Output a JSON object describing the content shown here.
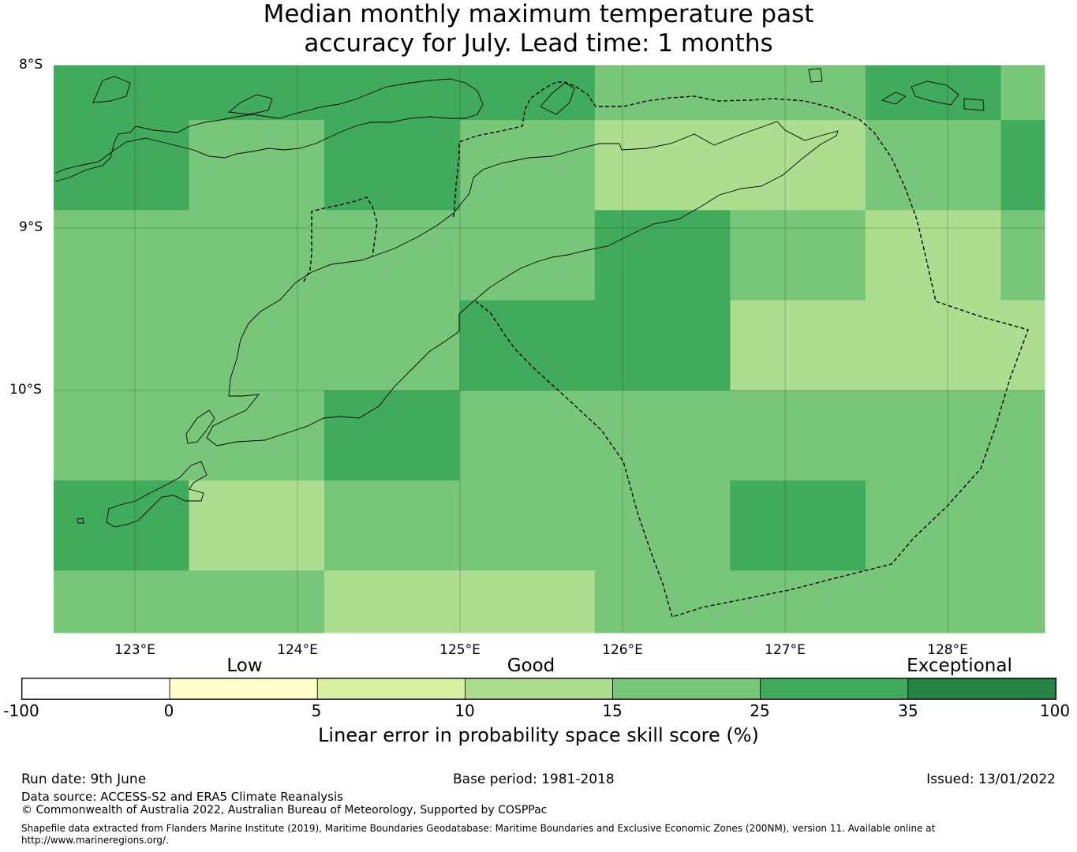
{
  "title": {
    "line1": "Median monthly maximum temperature past",
    "line2": "accuracy for July. Lead time: 1 months"
  },
  "map": {
    "lat_labels": [
      "8°S",
      "9°S",
      "10°S"
    ],
    "lon_labels": [
      "123°E",
      "124°E",
      "125°E",
      "126°E",
      "127°E",
      "128°E"
    ],
    "skill_grid": [
      [
        35,
        35,
        35,
        35,
        25,
        25,
        35,
        25
      ],
      [
        35,
        25,
        35,
        25,
        15,
        15,
        25,
        35
      ],
      [
        25,
        25,
        25,
        25,
        35,
        25,
        15,
        25
      ],
      [
        25,
        25,
        25,
        35,
        35,
        15,
        15,
        15
      ],
      [
        25,
        25,
        35,
        25,
        25,
        25,
        25,
        25
      ],
      [
        35,
        15,
        25,
        25,
        25,
        35,
        25,
        25
      ],
      [
        25,
        25,
        15,
        15,
        25,
        25,
        25,
        25
      ]
    ]
  },
  "colorbar": {
    "categories": [
      "Low",
      "Good",
      "Exceptional"
    ],
    "ticks": [
      "-100",
      "0",
      "5",
      "10",
      "15",
      "25",
      "35",
      "100"
    ],
    "colors": [
      "#ffffff",
      "#ffffcc",
      "#d9f0a3",
      "#addd8e",
      "#78c679",
      "#41ab5d",
      "#238443"
    ],
    "label": "Linear error in probability space skill score (%)"
  },
  "footer": {
    "run_date": "Run date: 9th June",
    "base_period": "Base period: 1981-2018",
    "issued": "Issued: 13/01/2022",
    "data_source": "Data source: ACCESS-S2 and ERA5 Climate Reanalysis",
    "copyright": "© Commonwealth of Australia 2022, Australian Bureau of Meteorology, Supported by COSPPac",
    "shapefile_line1": "Shapefile data extracted from Flanders Marine Institute (2019), Maritime Boundaries Geodatabase: Maritime Boundaries and Exclusive Economic Zones (200NM), version 11. Available online at",
    "shapefile_line2": "http://www.marineregions.org/."
  }
}
